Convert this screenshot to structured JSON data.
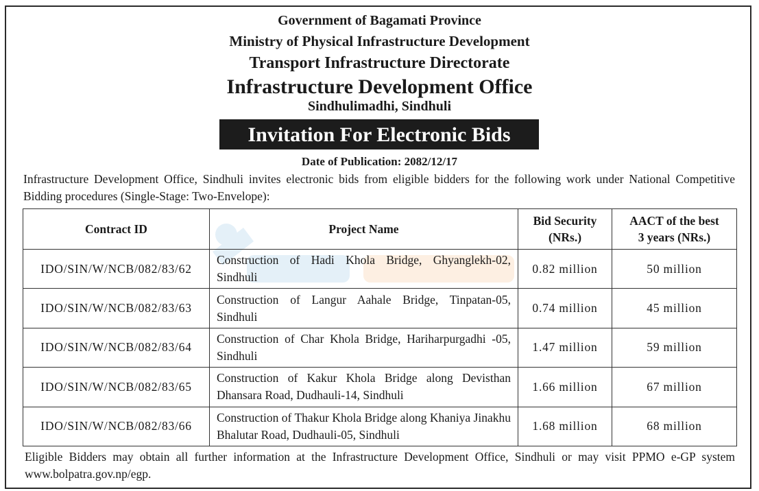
{
  "header": {
    "line1": "Government of Bagamati Province",
    "line2": "Ministry of Physical Infrastructure Development",
    "line3": "Transport Infrastructure Directorate",
    "line4": "Infrastructure Development Office",
    "line5": "Sindhulimadhi, Sindhuli"
  },
  "banner": "Invitation For Electronic Bids",
  "publication": "Date of Publication: 2082/12/17",
  "intro": "Infrastructure Development Office, Sindhuli invites electronic bids from eligible bidders for the following work under National Competitive Bidding procedures (Single-Stage: Two-Envelope):",
  "table": {
    "headers": {
      "contract_id": "Contract ID",
      "project_name": "Project Name",
      "bid_security_1": "Bid Security",
      "bid_security_2": "(NRs.)",
      "aact_1": "AACT of the best",
      "aact_2": "3 years (NRs.)"
    },
    "rows": [
      {
        "id": "IDO/SIN/W/NCB/082/83/62",
        "name": "Construction of Hadi Khola Bridge, Ghyanglekh-02, Sindhuli",
        "security": "0.82 million",
        "aact": "50 million"
      },
      {
        "id": "IDO/SIN/W/NCB/082/83/63",
        "name": "Construction of Langur Aahale Bridge, Tinpatan-05, Sindhuli",
        "security": "0.74 million",
        "aact": "45 million"
      },
      {
        "id": "IDO/SIN/W/NCB/082/83/64",
        "name": "Construction of Char Khola Bridge, Hariharpurgadhi -05, Sindhuli",
        "security": "1.47 million",
        "aact": "59 million"
      },
      {
        "id": "IDO/SIN/W/NCB/082/83/65",
        "name": "Construction of Kakur Khola Bridge along Devisthan Dhansara Road, Dudhauli-14, Sindhuli",
        "security": "1.66 million",
        "aact": "67 million"
      },
      {
        "id": "IDO/SIN/W/NCB/082/83/66",
        "name": "Construction of Thakur Khola Bridge along Khaniya Jinakhu Bhalutar Road, Dudhauli-05, Sindhuli",
        "security": "1.68 million",
        "aact": "68 million"
      }
    ]
  },
  "footer": "Eligible Bidders may obtain all further information at the Infrastructure Development Office, Sindhuli or may visit PPMO e-GP system www.bolpatra.gov.np/egp.",
  "colors": {
    "banner_bg": "#1c1c1c",
    "watermark_blue": "#3b8fd0",
    "watermark_orange": "#f08a2a"
  }
}
